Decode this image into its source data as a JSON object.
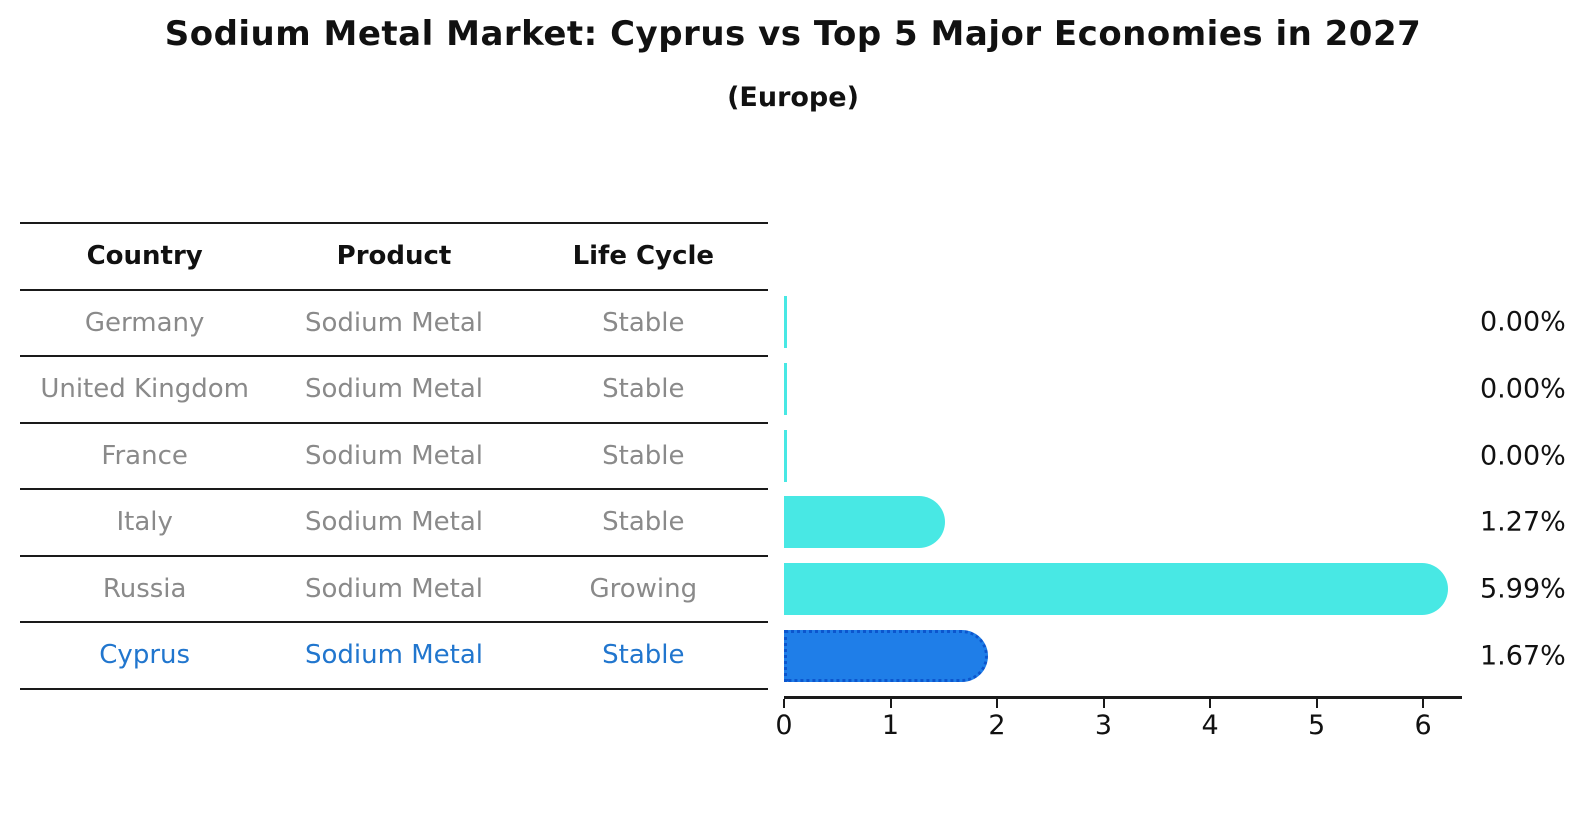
{
  "title": "Sodium Metal Market: Cyprus vs Top 5 Major Economies in 2027",
  "subtitle": "(Europe)",
  "table": {
    "headers": [
      "Country",
      "Product",
      "Life Cycle"
    ],
    "rows": [
      {
        "country": "Germany",
        "product": "Sodium Metal",
        "life_cycle": "Stable",
        "highlight": false
      },
      {
        "country": "United Kingdom",
        "product": "Sodium Metal",
        "life_cycle": "Stable",
        "highlight": false
      },
      {
        "country": "France",
        "product": "Sodium Metal",
        "life_cycle": "Stable",
        "highlight": false
      },
      {
        "country": "Italy",
        "product": "Sodium Metal",
        "life_cycle": "Stable",
        "highlight": false
      },
      {
        "country": "Russia",
        "product": "Sodium Metal",
        "life_cycle": "Growing",
        "highlight": false
      },
      {
        "country": "Cyprus",
        "product": "Sodium Metal",
        "life_cycle": "Stable",
        "highlight": true
      }
    ]
  },
  "chart_data": {
    "type": "bar",
    "orientation": "horizontal",
    "title": "Sodium Metal Market: Cyprus vs Top 5 Major Economies in 2027 (Europe)",
    "categories": [
      "Germany",
      "United Kingdom",
      "France",
      "Italy",
      "Russia",
      "Cyprus"
    ],
    "values": [
      0.0,
      0.0,
      0.0,
      1.27,
      5.99,
      1.67
    ],
    "value_labels": [
      "0.00%",
      "0.00%",
      "0.00%",
      "1.27%",
      "5.99%",
      "1.67%"
    ],
    "xlabel": "",
    "ylabel": "",
    "xlim": [
      0,
      6.3
    ],
    "xticks": [
      "0",
      "1",
      "2",
      "3",
      "4",
      "5",
      "6"
    ],
    "grid": false,
    "legend": false,
    "highlight_index": 5
  },
  "colors": {
    "bar_default": "#48e8e4",
    "bar_highlight": "#1f7ee8",
    "bar_highlight_border": "#0c56ce",
    "table_text": "#8a8a8a",
    "highlight_text": "#2176ce",
    "axis": "#1a1a1a",
    "heading_text": "#111111"
  }
}
